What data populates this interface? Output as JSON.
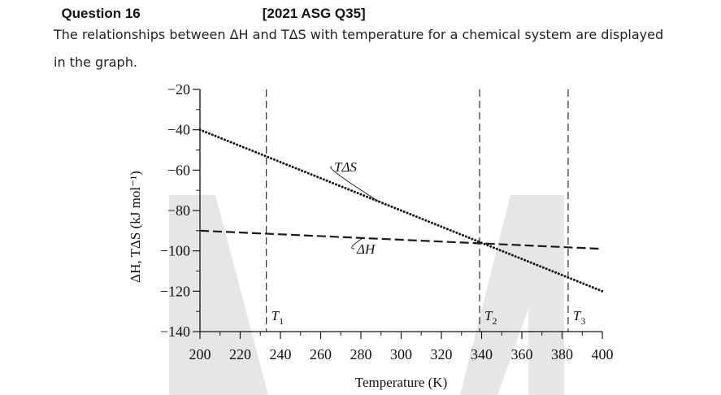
{
  "header": {
    "cut_off_heading_left": "Question 16",
    "cut_off_heading_right": "[2021 ASG Q35]"
  },
  "question": {
    "text": "The relationships between ΔH and TΔS with temperature for a chemical system are displayed in the graph."
  },
  "colors": {
    "ink": "#1a1a1a",
    "watermark": "#e6e6e6"
  },
  "chart_data": {
    "type": "line",
    "xlabel": "Temperature (K)",
    "ylabel": "ΔH, TΔS (kJ mol⁻¹)",
    "xlim": [
      200,
      400
    ],
    "ylim": [
      -140,
      -20
    ],
    "x_ticks": [
      200,
      220,
      240,
      260,
      280,
      300,
      320,
      340,
      360,
      380,
      400
    ],
    "y_ticks": [
      -20,
      -40,
      -60,
      -80,
      -100,
      -120,
      -140
    ],
    "x_tick_labels": [
      "200",
      "220",
      "240",
      "260",
      "280",
      "300",
      "320",
      "340",
      "360",
      "380",
      "400"
    ],
    "y_tick_labels": [
      "−20",
      "−40",
      "−60",
      "−80",
      "−100",
      "−120",
      "−140"
    ],
    "grid": false,
    "series": [
      {
        "name": "TΔS",
        "style": "dotted",
        "x": [
          200,
          400
        ],
        "y": [
          -40,
          -120
        ]
      },
      {
        "name": "ΔH",
        "style": "dashed",
        "x": [
          200,
          400
        ],
        "y": [
          -90,
          -99
        ]
      }
    ],
    "reference_lines": [
      {
        "label": "T",
        "subscript": "1",
        "x": 233
      },
      {
        "label": "T",
        "subscript": "2",
        "x": 339
      },
      {
        "label": "T",
        "subscript": "3",
        "x": 383
      }
    ]
  }
}
